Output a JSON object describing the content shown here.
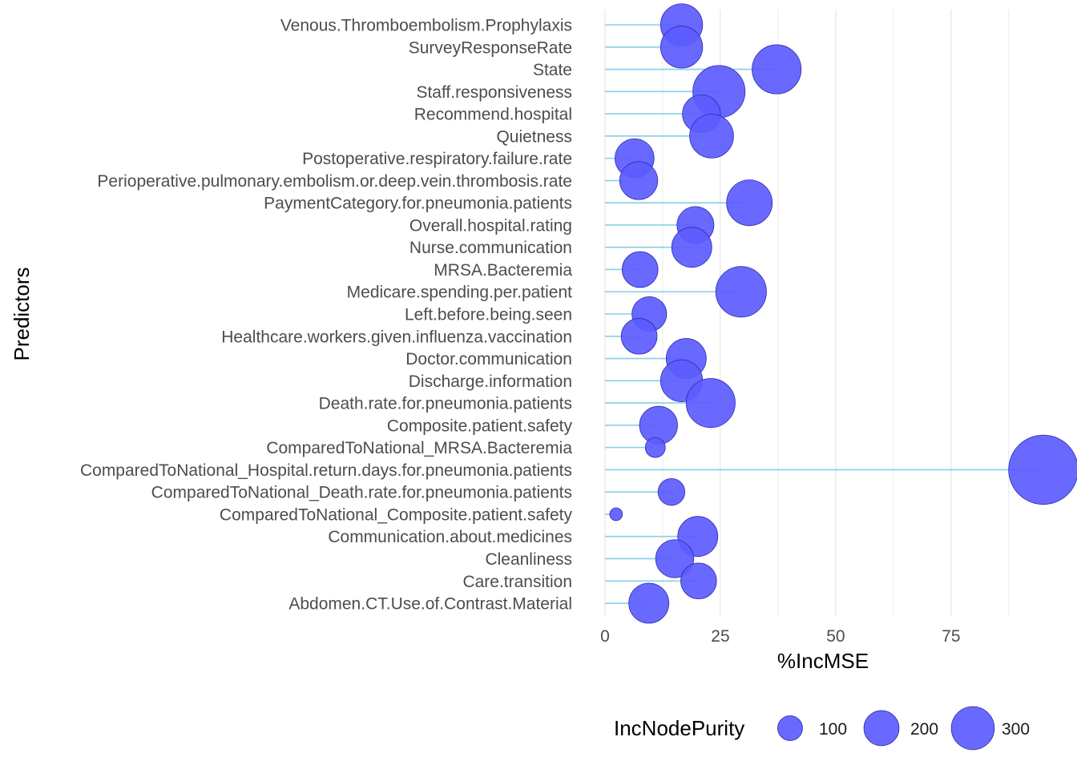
{
  "chart_data": {
    "type": "lollipop",
    "xlabel": "%IncMSE",
    "ylabel": "Predictors",
    "xlim": [
      0,
      95
    ],
    "x_ticks": [
      0,
      25,
      50,
      75
    ],
    "x_tick_labels": [
      "0",
      "25",
      "50",
      "75"
    ],
    "size_legend": {
      "title": "IncNodePurity",
      "values": [
        100,
        200,
        300
      ],
      "labels": [
        "100",
        "200",
        "300"
      ],
      "position": "bottom"
    },
    "colors": {
      "point": "#5c5cff",
      "point_edge": "#2a2ab0",
      "segment": "#87ceeb",
      "grid": "#e6e6e6"
    },
    "grid": true,
    "categories": [
      "Venous.Thromboembolism.Prophylaxis",
      "SurveyResponseRate",
      "State",
      "Staff.responsiveness",
      "Recommend.hospital",
      "Quietness",
      "Postoperative.respiratory.failure.rate",
      "Perioperative.pulmonary.embolism.or.deep.vein.thrombosis.rate",
      "PaymentCategory.for.pneumonia.patients",
      "Overall.hospital.rating",
      "Nurse.communication",
      "MRSA.Bacteremia",
      "Medicare.spending.per.patient",
      "Left.before.being.seen",
      "Healthcare.workers.given.influenza.vaccination",
      "Doctor.communication",
      "Discharge.information",
      "Death.rate.for.pneumonia.patients",
      "Composite.patient.safety",
      "ComparedToNational_MRSA.Bacteremia",
      "ComparedToNational_Hospital.return.days.for.pneumonia.patients",
      "ComparedToNational_Death.rate.for.pneumonia.patients",
      "ComparedToNational_Composite.patient.safety",
      "Communication.about.medicines",
      "Cleanliness",
      "Care.transition",
      "Abdomen.CT.Use.of.Contrast.Material"
    ],
    "series": [
      {
        "values": [
          16.6,
          16.6,
          37.2,
          24.7,
          20.9,
          23.1,
          6.4,
          7.3,
          31.3,
          19.6,
          18.8,
          7.6,
          29.5,
          9.6,
          7.4,
          17.6,
          16.6,
          22.9,
          11.6,
          10.9,
          95.0,
          14.4,
          2.4,
          20.1,
          15.1,
          20.3,
          9.5
        ],
        "size_values": [
          110,
          110,
          150,
          170,
          90,
          120,
          95,
          90,
          130,
          85,
          100,
          80,
          160,
          75,
          80,
          100,
          110,
          150,
          90,
          25,
          300,
          45,
          10,
          100,
          90,
          80,
          100
        ]
      }
    ]
  }
}
